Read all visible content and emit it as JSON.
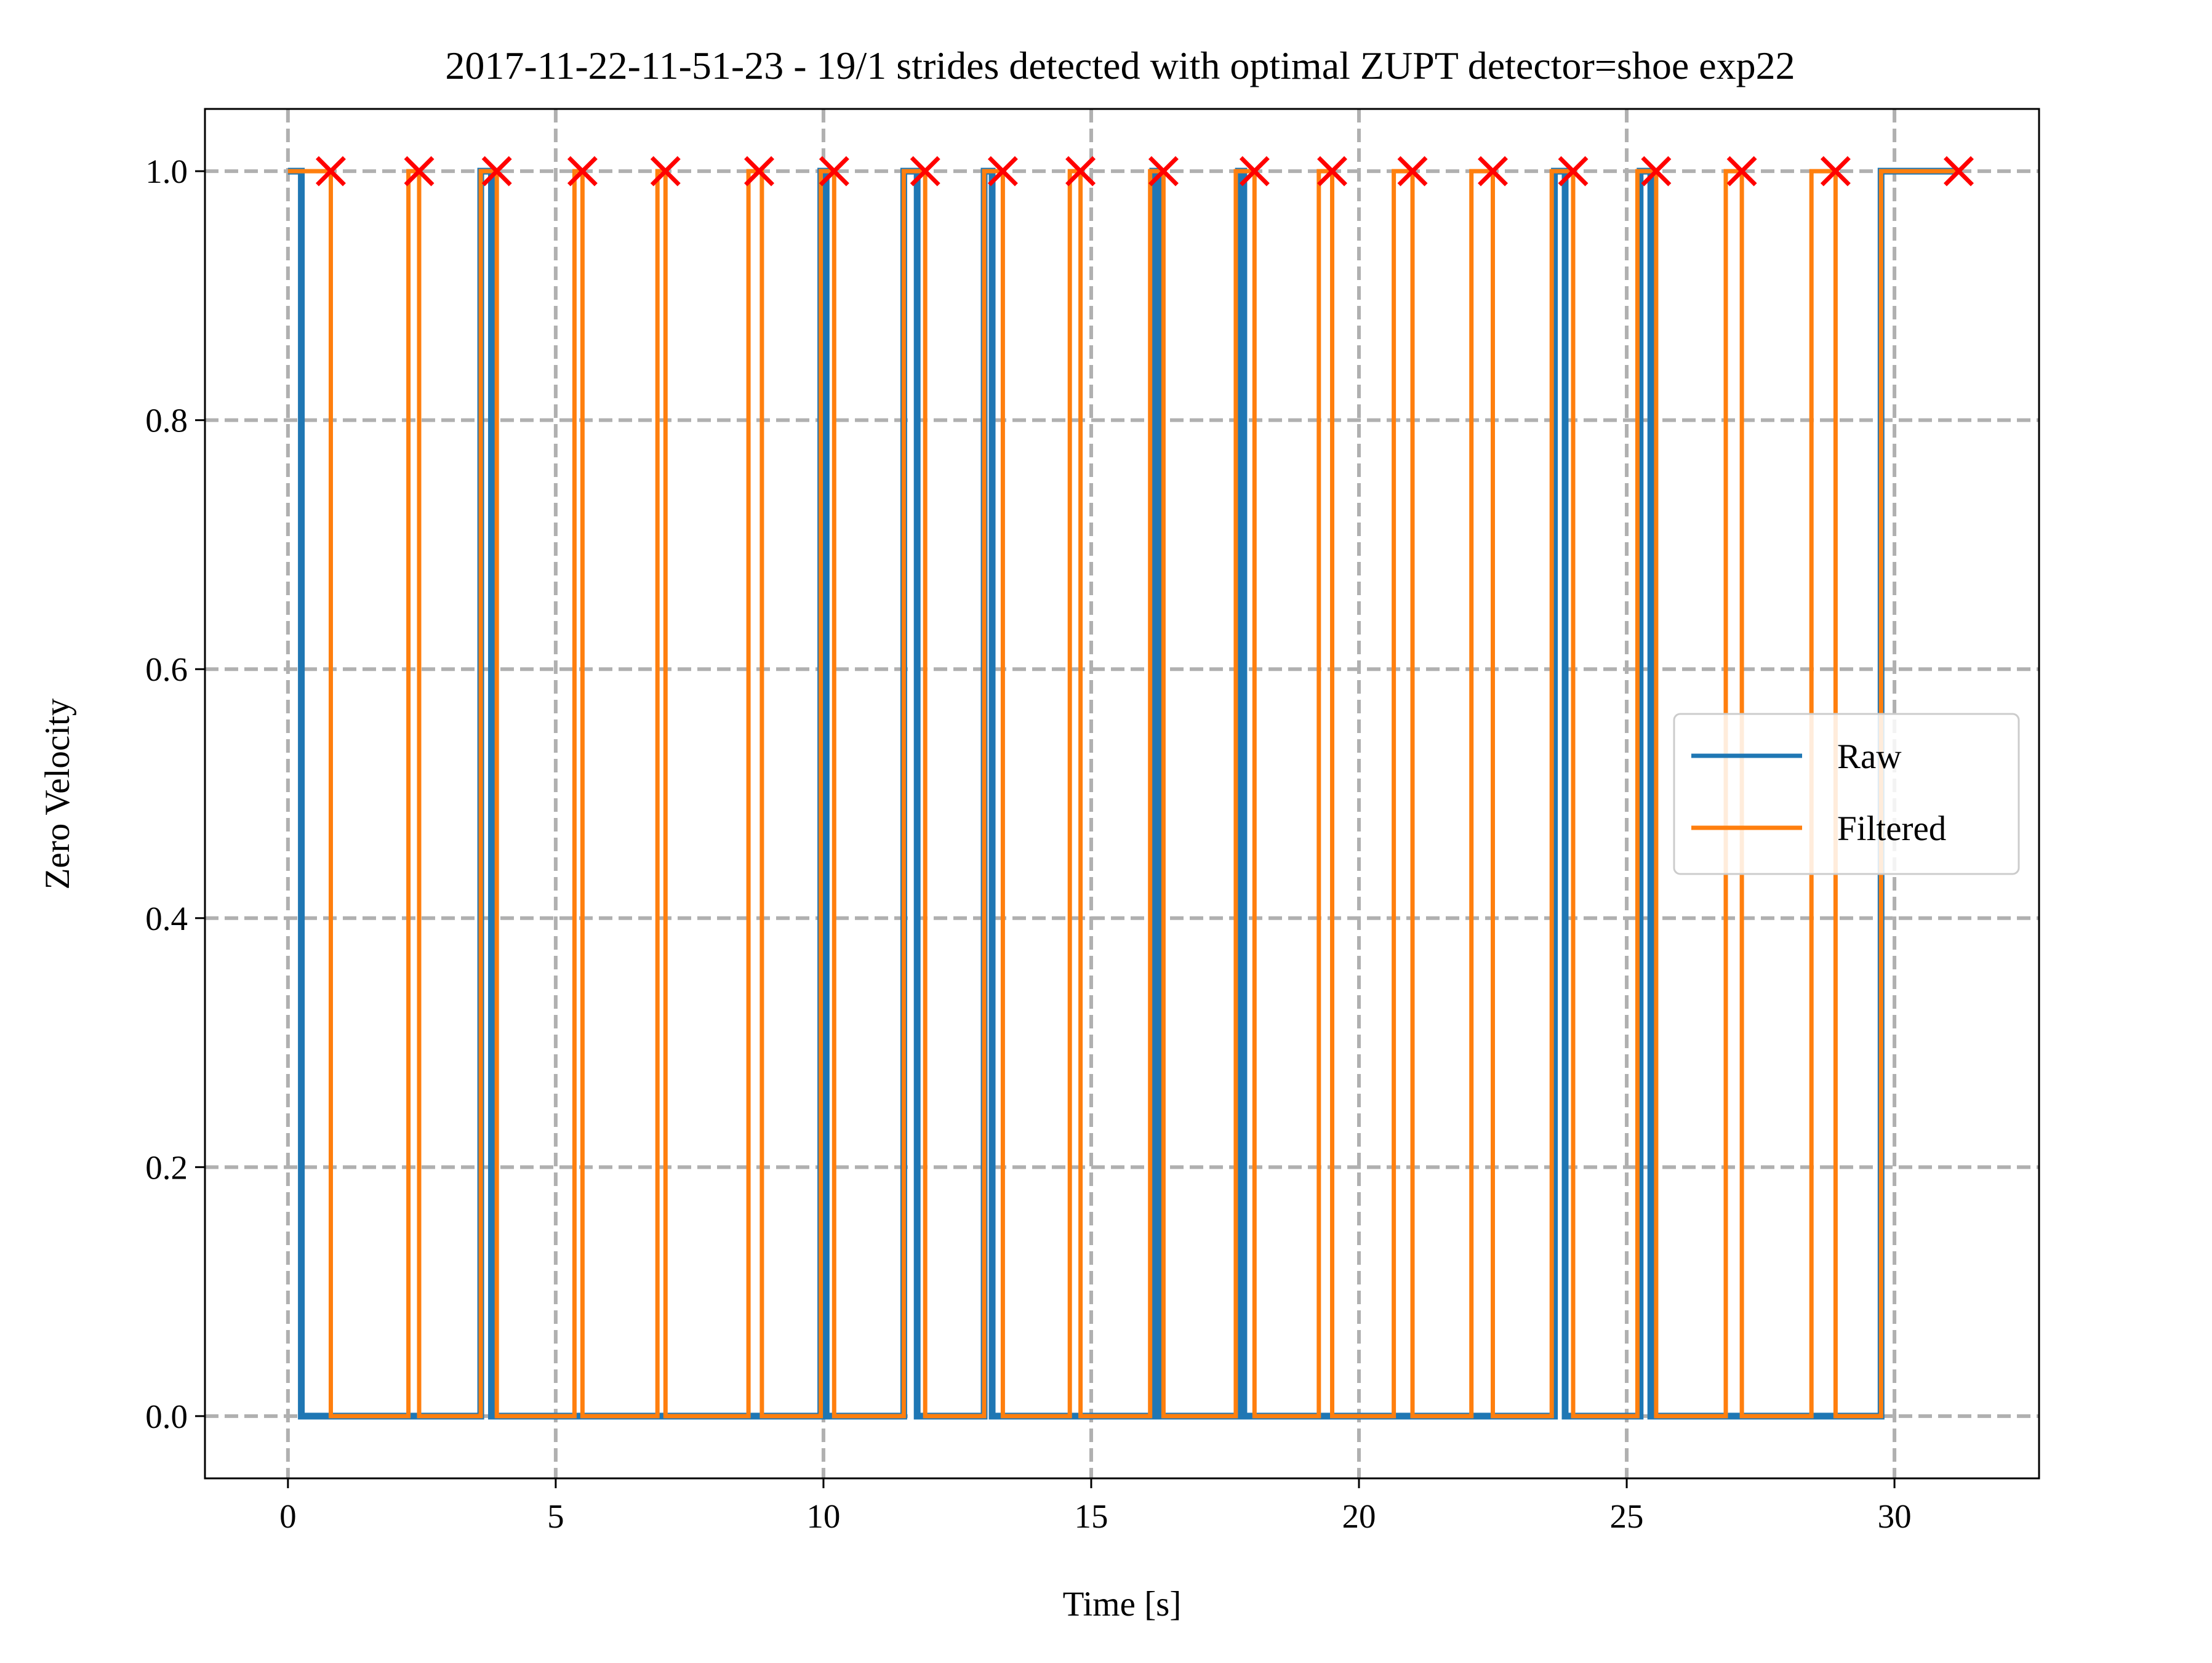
{
  "chart_data": {
    "type": "line",
    "title": "2017-11-22-11-51-23 - 19/1 strides detected with optimal ZUPT detector=shoe exp22",
    "xlabel": "Time [s]",
    "ylabel": "Zero Velocity",
    "xlim": [
      -1.55,
      32.7
    ],
    "ylim": [
      -0.05,
      1.05
    ],
    "xticks": [
      0,
      5,
      10,
      15,
      20,
      25,
      30
    ],
    "xtick_labels": [
      "0",
      "5",
      "10",
      "15",
      "20",
      "25",
      "30"
    ],
    "yticks": [
      0.0,
      0.2,
      0.4,
      0.6,
      0.8,
      1.0
    ],
    "ytick_labels": [
      "0.0",
      "0.2",
      "0.4",
      "0.6",
      "0.8",
      "1.0"
    ],
    "grid": true,
    "legend_position": "center-right",
    "series": [
      {
        "name": "Raw",
        "color": "#1f77b4",
        "x": [
          0.0,
          0.25,
          0.25,
          0.3,
          0.3,
          2.25,
          2.25,
          2.3,
          2.3,
          3.6,
          3.6,
          3.8,
          3.8,
          5.45,
          5.45,
          5.5,
          5.5,
          6.95,
          6.95,
          7.0,
          7.0,
          8.65,
          8.65,
          8.7,
          8.7,
          9.95,
          9.95,
          10.05,
          10.05,
          11.5,
          11.5,
          11.75,
          11.75,
          13.0,
          13.0,
          13.15,
          13.15,
          14.6,
          14.6,
          14.65,
          14.65,
          16.15,
          16.15,
          16.25,
          16.25,
          17.75,
          17.75,
          17.85,
          17.85,
          19.3,
          19.3,
          19.35,
          19.35,
          20.7,
          20.7,
          20.75,
          20.75,
          22.15,
          22.15,
          22.2,
          22.2,
          23.65,
          23.65,
          23.85,
          23.85,
          25.25,
          25.25,
          25.45,
          25.45,
          26.9,
          26.9,
          26.95,
          26.95,
          28.45,
          28.45,
          28.5,
          28.5,
          29.75,
          29.75,
          31.2
        ],
        "values": [
          1,
          1,
          0,
          0,
          0,
          0,
          0,
          0,
          0,
          0,
          1,
          1,
          0,
          0,
          0,
          0,
          0,
          0,
          0,
          0,
          0,
          0,
          0,
          0,
          0,
          0,
          1,
          1,
          0,
          0,
          1,
          1,
          0,
          0,
          1,
          1,
          0,
          0,
          0,
          0,
          0,
          0,
          1,
          1,
          0,
          0,
          1,
          1,
          0,
          0,
          0,
          0,
          0,
          0,
          0,
          0,
          0,
          0,
          0,
          0,
          0,
          0,
          1,
          1,
          0,
          0,
          1,
          1,
          0,
          0,
          0,
          0,
          0,
          0,
          0,
          0,
          0,
          0,
          1,
          1
        ]
      },
      {
        "name": "Filtered",
        "color": "#ff7f0e",
        "x": [
          0.0,
          0.8,
          0.8,
          2.25,
          2.25,
          2.45,
          2.45,
          3.6,
          3.6,
          3.9,
          3.9,
          5.35,
          5.35,
          5.5,
          5.5,
          6.9,
          6.9,
          7.05,
          7.05,
          8.6,
          8.6,
          8.85,
          8.85,
          9.95,
          9.95,
          10.2,
          10.2,
          11.5,
          11.5,
          11.9,
          11.9,
          13.0,
          13.0,
          13.35,
          13.35,
          14.6,
          14.6,
          14.8,
          14.8,
          16.1,
          16.1,
          16.35,
          16.35,
          17.7,
          17.7,
          18.05,
          18.05,
          19.25,
          19.25,
          19.5,
          19.5,
          20.65,
          20.65,
          21.0,
          21.0,
          22.1,
          22.1,
          22.5,
          22.5,
          23.6,
          23.6,
          24.0,
          24.0,
          25.2,
          25.2,
          25.55,
          25.55,
          26.85,
          26.85,
          27.15,
          27.15,
          28.45,
          28.45,
          28.9,
          28.9,
          29.75,
          29.75,
          31.2
        ],
        "values": [
          1,
          1,
          0,
          0,
          1,
          1,
          0,
          0,
          1,
          1,
          0,
          0,
          1,
          1,
          0,
          0,
          1,
          1,
          0,
          0,
          1,
          1,
          0,
          0,
          1,
          1,
          0,
          0,
          1,
          1,
          0,
          0,
          1,
          1,
          0,
          0,
          1,
          1,
          0,
          0,
          1,
          1,
          0,
          0,
          1,
          1,
          0,
          0,
          1,
          1,
          0,
          0,
          1,
          1,
          0,
          0,
          1,
          1,
          0,
          0,
          1,
          1,
          0,
          0,
          1,
          1,
          0,
          0,
          1,
          1,
          0,
          0,
          1,
          1,
          0,
          0,
          1,
          1
        ]
      }
    ],
    "markers": {
      "color": "#ff0000",
      "symbol": "x",
      "x": [
        0.8,
        2.45,
        3.9,
        5.5,
        7.05,
        8.8,
        10.2,
        11.9,
        13.35,
        14.8,
        16.35,
        18.05,
        19.5,
        21.0,
        22.5,
        24.0,
        25.55,
        27.15,
        28.9,
        31.2
      ],
      "y": [
        1,
        1,
        1,
        1,
        1,
        1,
        1,
        1,
        1,
        1,
        1,
        1,
        1,
        1,
        1,
        1,
        1,
        1,
        1,
        1
      ]
    }
  }
}
